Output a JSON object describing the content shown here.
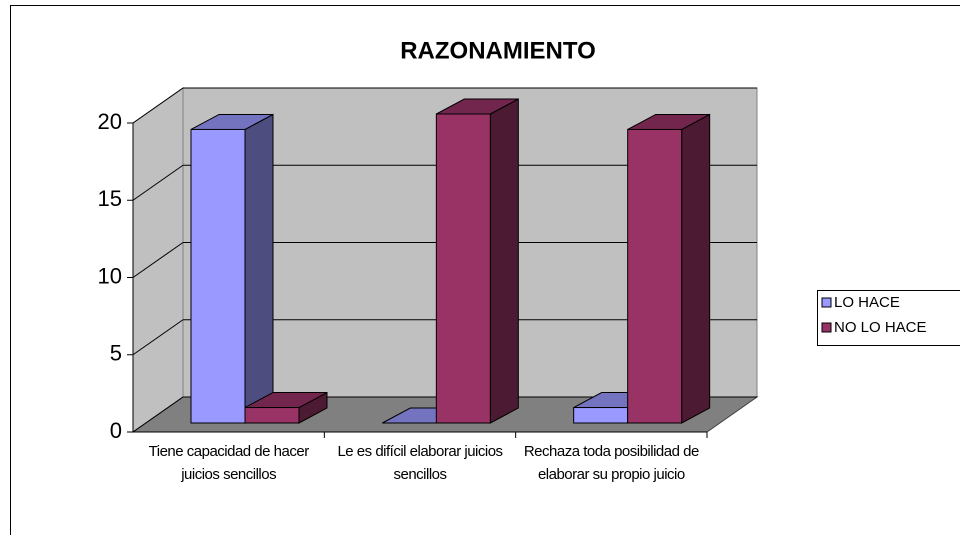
{
  "chart_data": {
    "type": "bar3d",
    "title": "RAZONAMIENTO",
    "categories": [
      "Tiene capacidad de hacer juicios sencillos",
      "Le es difícil elaborar juicios sencillos",
      "Rechaza toda posibilidad de elaborar su propio juicio"
    ],
    "series": [
      {
        "name": "LO HACE",
        "color": "#9999ff",
        "values": [
          19,
          0,
          1
        ]
      },
      {
        "name": "NO LO HACE",
        "color": "#993366",
        "values": [
          1,
          20,
          19
        ]
      }
    ],
    "ylim": [
      0,
      20
    ],
    "yticks": [
      0,
      5,
      10,
      15,
      20
    ],
    "grid": true,
    "legend": "right"
  }
}
